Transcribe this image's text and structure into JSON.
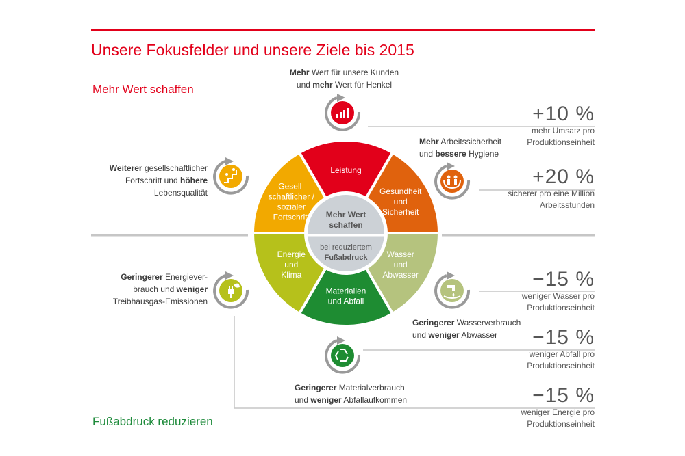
{
  "title": "Unsere Fokusfelder und unsere Ziele bis 2015",
  "sections": {
    "top": "Mehr Wert schaffen",
    "bottom": "Fußabdruck reduzieren"
  },
  "wheel": {
    "center_top": "Mehr Wert schaffen",
    "center_bottom_1": "bei reduziertem",
    "center_bottom_2": "Fußabdruck",
    "segments": [
      {
        "lines": [
          "Leistung"
        ],
        "color": "#e2001a"
      },
      {
        "lines": [
          "Gesundheit",
          "und",
          "Sicherheit"
        ],
        "color": "#e0620d"
      },
      {
        "lines": [
          "Wasser",
          "und",
          "Abwasser"
        ],
        "color": "#b5c37e"
      },
      {
        "lines": [
          "Materialien",
          "und Abfall"
        ],
        "color": "#1e8c32"
      },
      {
        "lines": [
          "Energie",
          "und",
          "Klima"
        ],
        "color": "#b6c11b"
      },
      {
        "lines": [
          "Gesell-",
          "schaftlicher /",
          "sozialer",
          "Fortschritt"
        ],
        "color": "#f2a900"
      }
    ]
  },
  "descriptions": {
    "kunden": {
      "b1": "Mehr",
      "t1": " Wert für unsere Kunden",
      "t2a": "und ",
      "b2": "mehr",
      "t2b": " Wert für Henkel"
    },
    "arbeit": {
      "b1": "Mehr",
      "t1": " Arbeitssicherheit",
      "t2a": "und ",
      "b2": "bessere",
      "t2b": " Hygiene"
    },
    "gesell": {
      "b1": "Weiterer",
      "t1": " gesellschaftlicher",
      "t2a": "Fortschritt und ",
      "b2": "höhere",
      "t3": "Lebensqualität"
    },
    "energie": {
      "b1": "Geringerer",
      "t1": " Energiever-",
      "t2a": "brauch und ",
      "b2": "weniger",
      "t3": "Treibhausgas-Emissionen"
    },
    "wasser": {
      "b1": "Geringerer",
      "t1": " Wasserverbrauch",
      "t2a": "und ",
      "b2": "weniger",
      "t2b": " Abwasser"
    },
    "material": {
      "b1": "Geringerer",
      "t1": " Materialverbrauch",
      "t2a": "und ",
      "b2": "weniger",
      "t2b": " Abfallaufkommen"
    }
  },
  "stats": [
    {
      "value": "+10 %",
      "line1": "mehr Umsatz pro",
      "line2": "Produktionseinheit"
    },
    {
      "value": "+20 %",
      "line1": "sicherer pro eine Million",
      "line2": "Arbeitsstunden"
    },
    {
      "value": "−15 %",
      "line1": "weniger Wasser pro",
      "line2": "Produktionseinheit"
    },
    {
      "value": "−15 %",
      "line1": "weniger Abfall pro",
      "line2": "Produktionseinheit"
    },
    {
      "value": "−15 %",
      "line1": "weniger Energie pro",
      "line2": "Produktionseinheit"
    }
  ],
  "icons": {
    "kunden": {
      "name": "bar-chart-icon",
      "color": "#e2001a"
    },
    "arbeit": {
      "name": "hands-people-icon",
      "color": "#e0620d"
    },
    "gesell": {
      "name": "stairs-people-icon",
      "color": "#f2a900"
    },
    "energie": {
      "name": "plug-leaf-icon",
      "color": "#b6c11b"
    },
    "wasser": {
      "name": "water-tap-icon",
      "color": "#b5c37e"
    },
    "material": {
      "name": "recycle-icon",
      "color": "#1e8c32"
    }
  }
}
